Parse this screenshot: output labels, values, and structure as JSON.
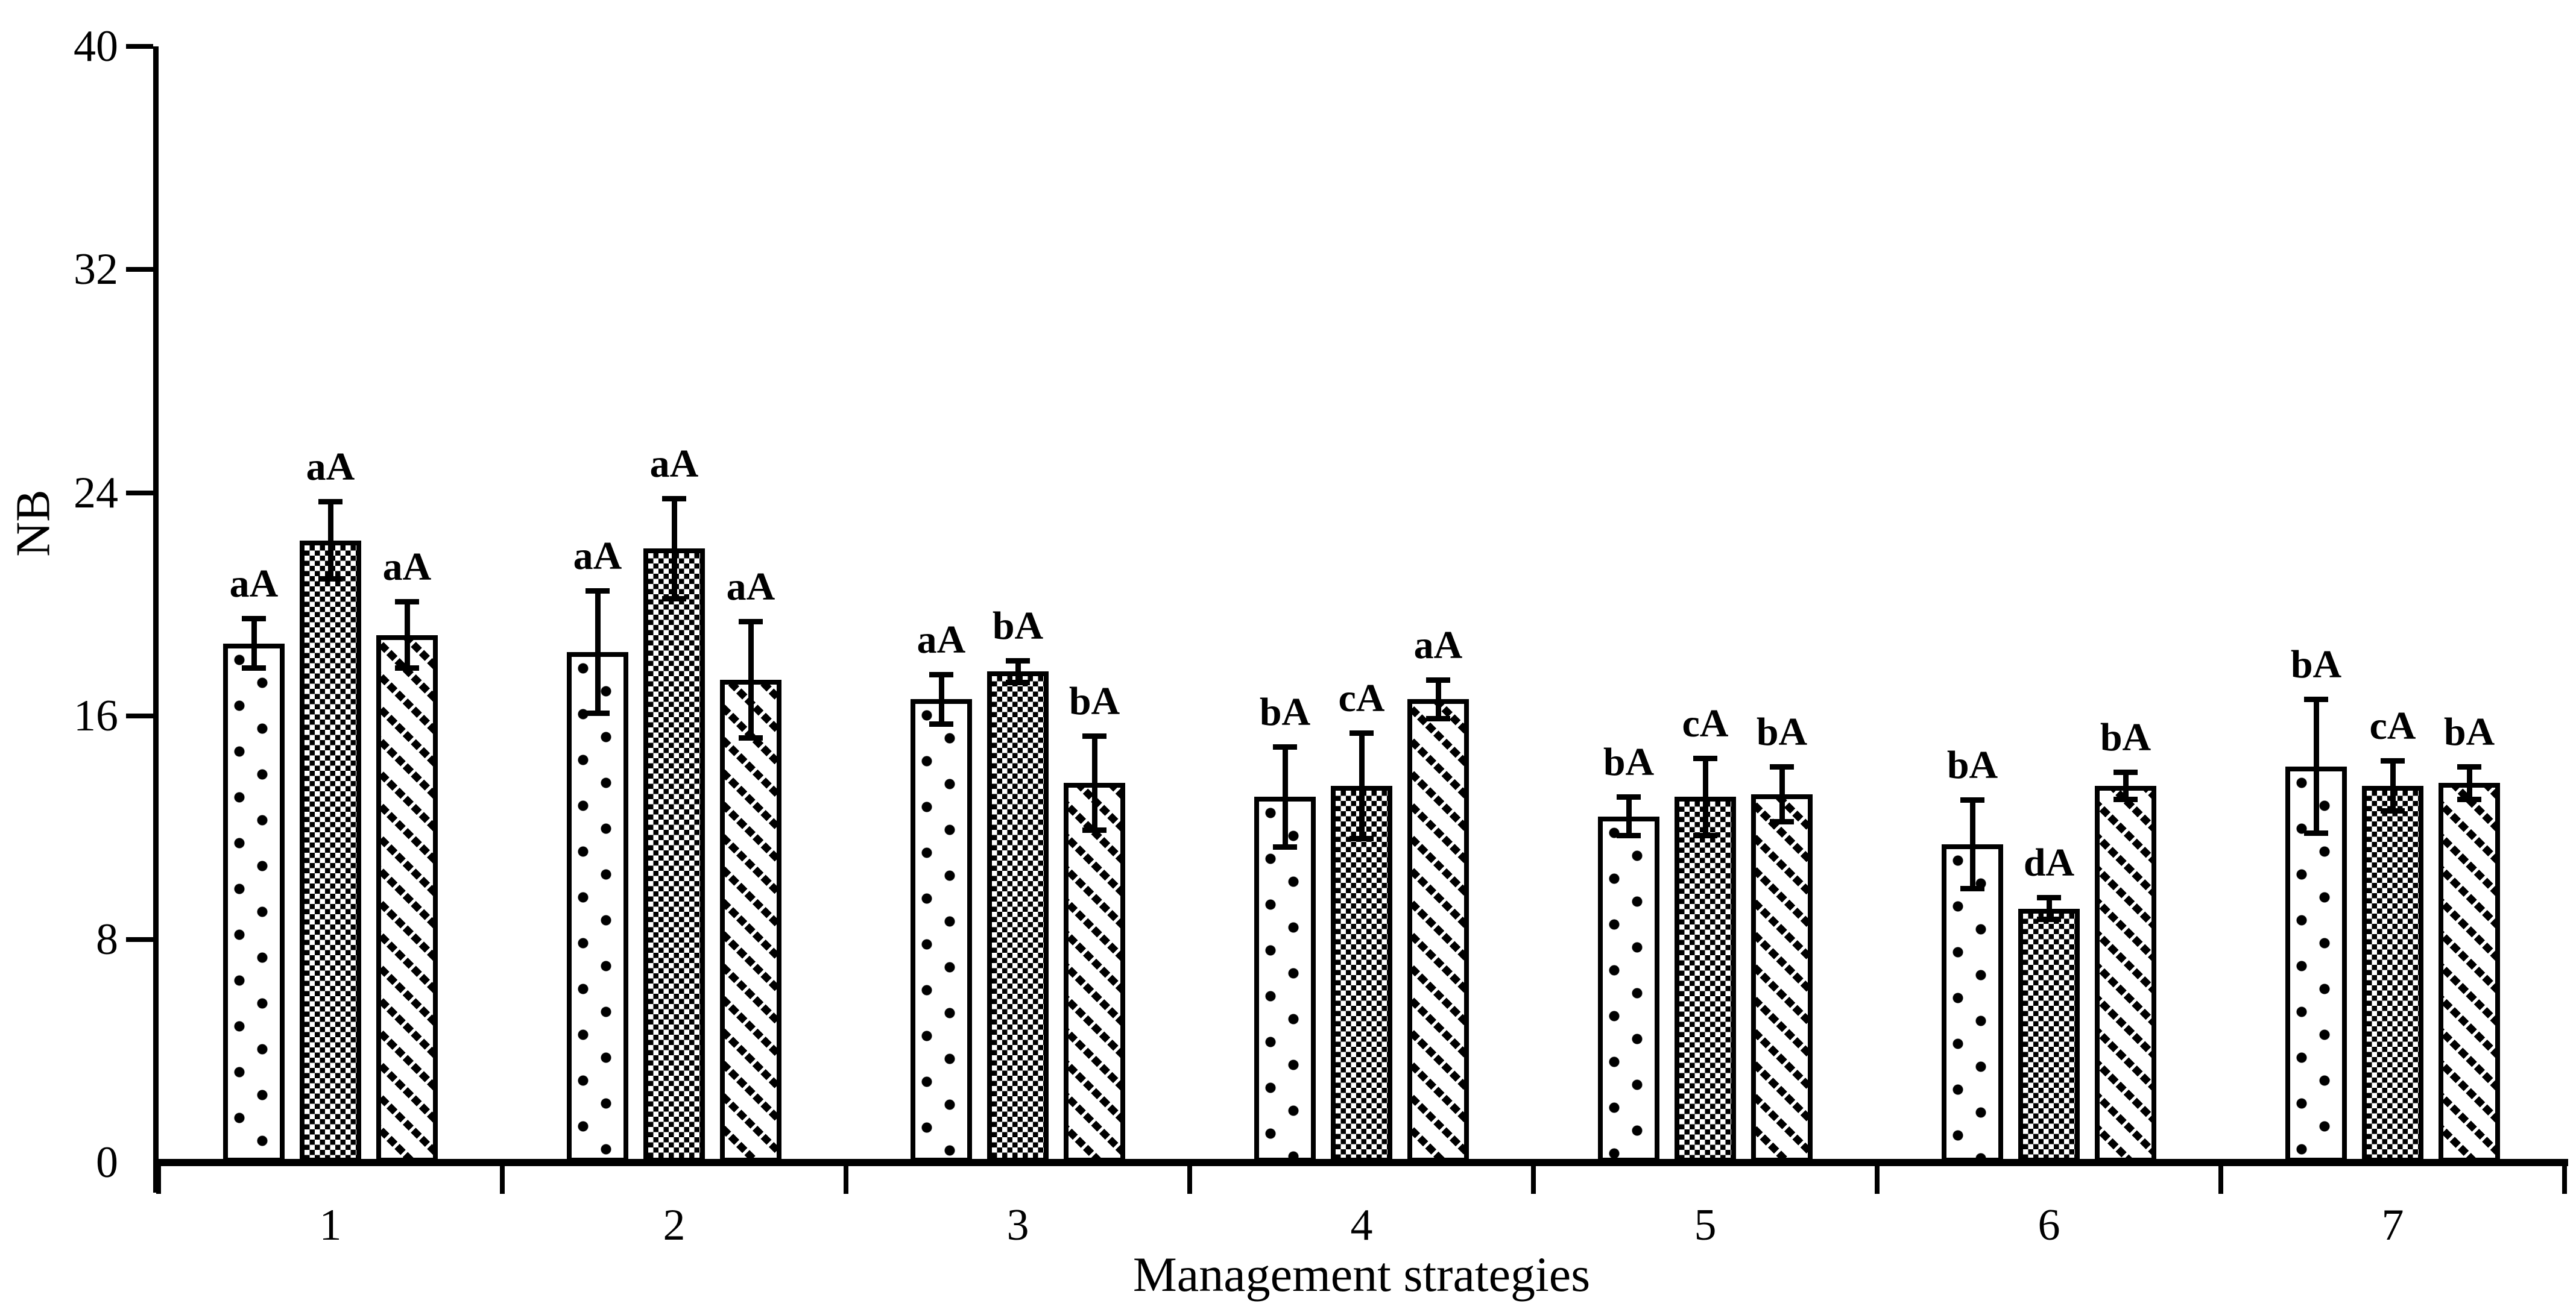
{
  "figure": {
    "background_color": "#ffffff",
    "ink_color": "#000000"
  },
  "chart_data": {
    "type": "bar",
    "title": "",
    "xlabel": "Management strategies",
    "ylabel": "NB",
    "ylim": [
      0,
      40
    ],
    "yticks": [
      0,
      8,
      16,
      24,
      32,
      40
    ],
    "categories": [
      "1",
      "2",
      "3",
      "4",
      "5",
      "6",
      "7"
    ],
    "grid": false,
    "legend": "none",
    "error_bars": true,
    "series": [
      {
        "name": "series-1",
        "pattern": "sparse-dots",
        "values": [
          18.6,
          18.3,
          16.6,
          13.1,
          12.4,
          11.4,
          14.2
        ],
        "errors": [
          0.9,
          2.2,
          0.9,
          1.8,
          0.7,
          1.6,
          2.4
        ],
        "point_labels": [
          "aA",
          "aA",
          "aA",
          "bA",
          "bA",
          "bA",
          "bA"
        ]
      },
      {
        "name": "series-2",
        "pattern": "checkerboard",
        "values": [
          22.3,
          22.0,
          17.6,
          13.5,
          13.1,
          9.1,
          13.5
        ],
        "errors": [
          1.4,
          1.8,
          0.4,
          1.9,
          1.4,
          0.4,
          0.9
        ],
        "point_labels": [
          "aA",
          "aA",
          "bA",
          "cA",
          "cA",
          "dA",
          "cA"
        ]
      },
      {
        "name": "series-3",
        "pattern": "diagonal-hatch",
        "values": [
          18.9,
          17.3,
          13.6,
          16.6,
          13.2,
          13.5,
          13.6
        ],
        "errors": [
          1.2,
          2.1,
          1.7,
          0.7,
          1.0,
          0.5,
          0.6
        ],
        "point_labels": [
          "aA",
          "aA",
          "bA",
          "aA",
          "bA",
          "bA",
          "bA"
        ]
      }
    ]
  }
}
